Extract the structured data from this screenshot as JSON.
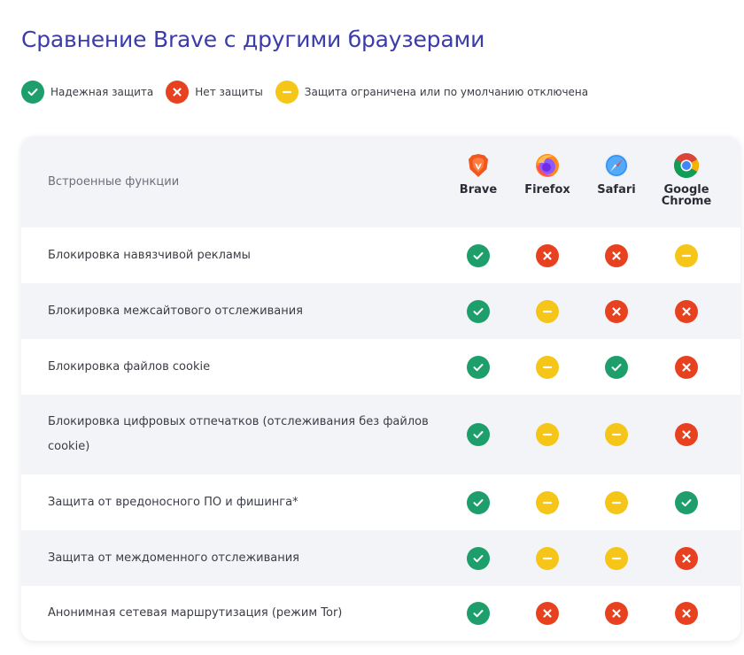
{
  "title": "Сравнение Brave с другими браузерами",
  "legend": [
    {
      "status": "yes",
      "label": "Надежная защита"
    },
    {
      "status": "no",
      "label": "Нет защиты"
    },
    {
      "status": "partial",
      "label": "Защита ограничена или по умолчанию отключена"
    }
  ],
  "colors": {
    "yes": "#1e9e6a",
    "no": "#e8411f",
    "partial": "#f5c518",
    "title": "#3b3bab"
  },
  "table": {
    "feature_header": "Встроенные функции",
    "browsers": [
      {
        "name": "Brave",
        "icon": "brave-icon"
      },
      {
        "name": "Firefox",
        "icon": "firefox-icon"
      },
      {
        "name": "Safari",
        "icon": "safari-icon"
      },
      {
        "name": "Google Chrome",
        "icon": "chrome-icon"
      }
    ],
    "rows": [
      {
        "feature": "Блокировка навязчивой рекламы",
        "values": [
          "yes",
          "no",
          "no",
          "partial"
        ]
      },
      {
        "feature": "Блокировка межсайтового отслеживания",
        "values": [
          "yes",
          "partial",
          "no",
          "no"
        ]
      },
      {
        "feature": "Блокировка файлов cookie",
        "values": [
          "yes",
          "partial",
          "yes",
          "no"
        ]
      },
      {
        "feature": "Блокировка цифровых отпечатков (отслеживания без файлов cookie)",
        "values": [
          "yes",
          "partial",
          "partial",
          "no"
        ]
      },
      {
        "feature": "Защита от вредоносного ПО и фишинга*",
        "values": [
          "yes",
          "partial",
          "partial",
          "yes"
        ]
      },
      {
        "feature": "Защита от междоменного отслеживания",
        "values": [
          "yes",
          "partial",
          "partial",
          "no"
        ]
      },
      {
        "feature": "Анонимная сетевая маршрутизация (режим Tor)",
        "values": [
          "yes",
          "no",
          "no",
          "no"
        ]
      }
    ]
  }
}
